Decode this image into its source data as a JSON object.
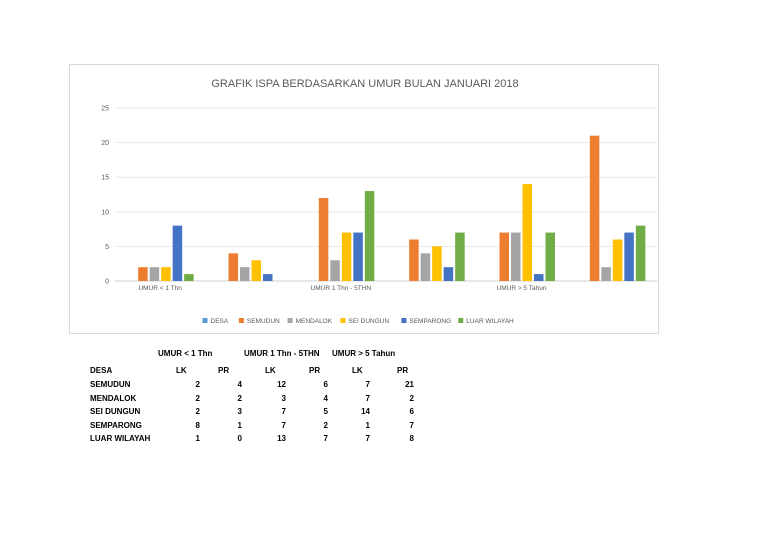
{
  "chart_data": {
    "type": "bar",
    "title": "GRAFIK ISPA BERDASARKAN UMUR BULAN JANUARI 2018",
    "xlabel": "",
    "ylabel": "",
    "ylim": [
      0,
      25
    ],
    "yticks": [
      "0",
      "5",
      "10",
      "15",
      "20",
      "25"
    ],
    "grid": true,
    "legend_position": "bottom",
    "categories": [
      "UMUR < 1 Thn",
      "",
      "UMUR  1 Thn - 5THN",
      "",
      "UMUR > 5 Tahun",
      ""
    ],
    "series": [
      {
        "name": "DESA",
        "color": "#5B9BD5",
        "values": [
          null,
          null,
          null,
          null,
          null,
          null
        ]
      },
      {
        "name": "SEMUDUN",
        "color": "#ED7D31",
        "values": [
          2,
          4,
          12,
          6,
          7,
          21
        ]
      },
      {
        "name": "MENDALOK",
        "color": "#A5A5A5",
        "values": [
          2,
          2,
          3,
          4,
          7,
          2
        ]
      },
      {
        "name": "SEI DUNGUN",
        "color": "#FFC000",
        "values": [
          2,
          3,
          7,
          5,
          14,
          6
        ]
      },
      {
        "name": "SEMPARONG",
        "color": "#4472C4",
        "values": [
          8,
          1,
          7,
          2,
          1,
          7
        ]
      },
      {
        "name": "LUAR WILAYAH",
        "color": "#70AD47",
        "values": [
          1,
          0,
          13,
          7,
          7,
          8
        ]
      }
    ]
  },
  "table": {
    "group_headers": [
      "UMUR < 1 Thn",
      "UMUR  1 Thn - 5THN",
      "UMUR > 5 Tahun"
    ],
    "corner": "DESA",
    "sub_headers": [
      "LK",
      "PR",
      "LK",
      "PR",
      "LK",
      "PR"
    ],
    "rows": [
      {
        "label": "SEMUDUN",
        "values": [
          "2",
          "4",
          "12",
          "6",
          "7",
          "21"
        ]
      },
      {
        "label": "MENDALOK",
        "values": [
          "2",
          "2",
          "3",
          "4",
          "7",
          "2"
        ]
      },
      {
        "label": "SEI DUNGUN",
        "values": [
          "2",
          "3",
          "7",
          "5",
          "14",
          "6"
        ]
      },
      {
        "label": "SEMPARONG",
        "values": [
          "8",
          "1",
          "7",
          "2",
          "1",
          "7"
        ]
      },
      {
        "label": "LUAR WILAYAH",
        "values": [
          "1",
          "0",
          "13",
          "7",
          "7",
          "8"
        ]
      }
    ]
  }
}
